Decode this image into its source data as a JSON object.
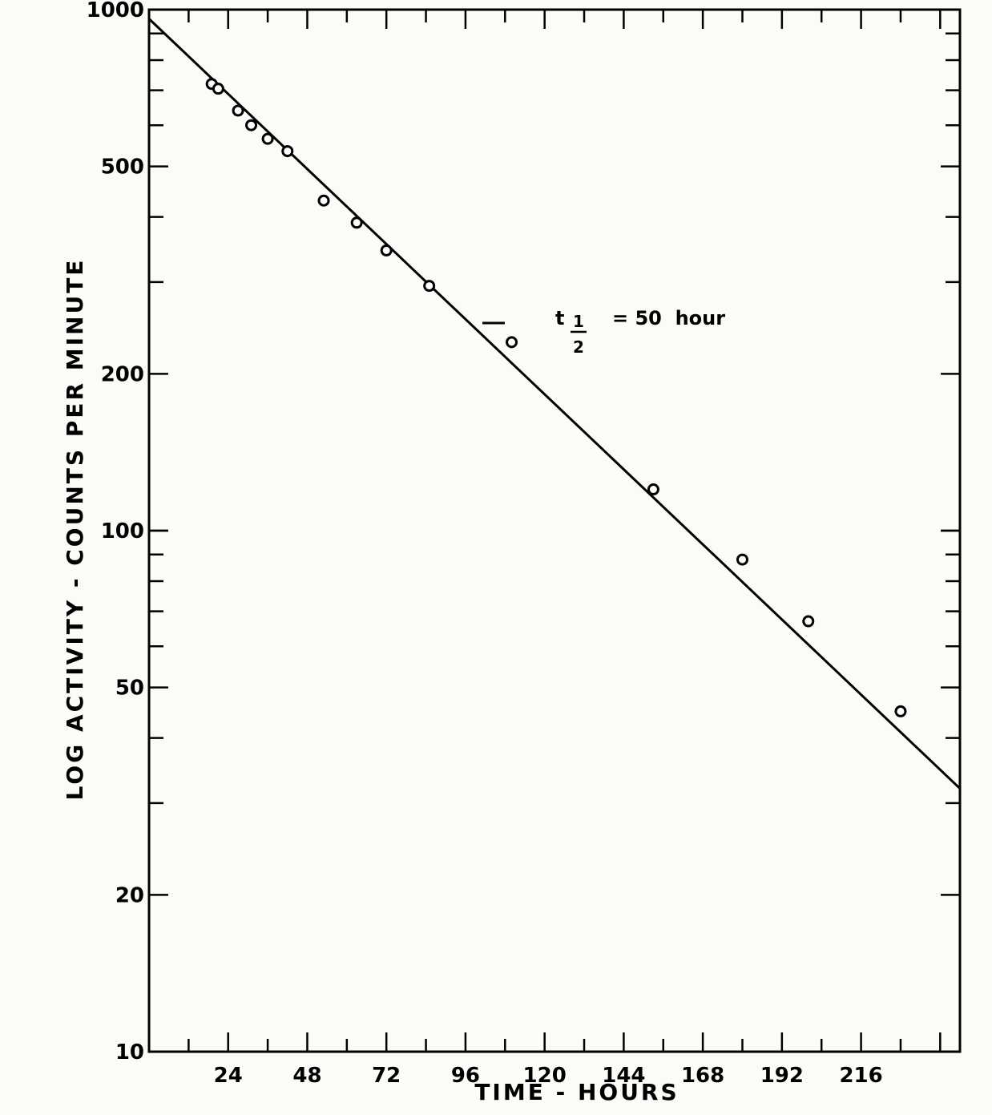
{
  "chart_data": {
    "type": "scatter",
    "xlabel": "TIME - HOURS",
    "ylabel": "LOG ACTIVITY - COUNTS PER MINUTE",
    "x_ticks": [
      "24",
      "48",
      "72",
      "96",
      "120",
      "144",
      "168",
      "192",
      "216"
    ],
    "y_ticks": [
      "1000",
      "500",
      "200",
      "100",
      "50",
      "20",
      "10"
    ],
    "xlim": [
      0,
      246
    ],
    "ylim": [
      10,
      1000
    ],
    "y_scale": "log",
    "grid": false,
    "annotation": {
      "prefix": "t",
      "fraction_num": "1",
      "fraction_den": "2",
      "suffix": "= 50  hour"
    },
    "series": [
      {
        "x": [
          19,
          21,
          27,
          31,
          36,
          42,
          53,
          63,
          72,
          85,
          110,
          153,
          180,
          200,
          228
        ],
        "y": [
          720,
          705,
          640,
          600,
          565,
          535,
          430,
          390,
          345,
          295,
          230,
          120,
          88,
          67,
          45
        ]
      }
    ],
    "fit_line": {
      "x": [
        0,
        246
      ],
      "y": [
        960,
        32
      ]
    }
  }
}
